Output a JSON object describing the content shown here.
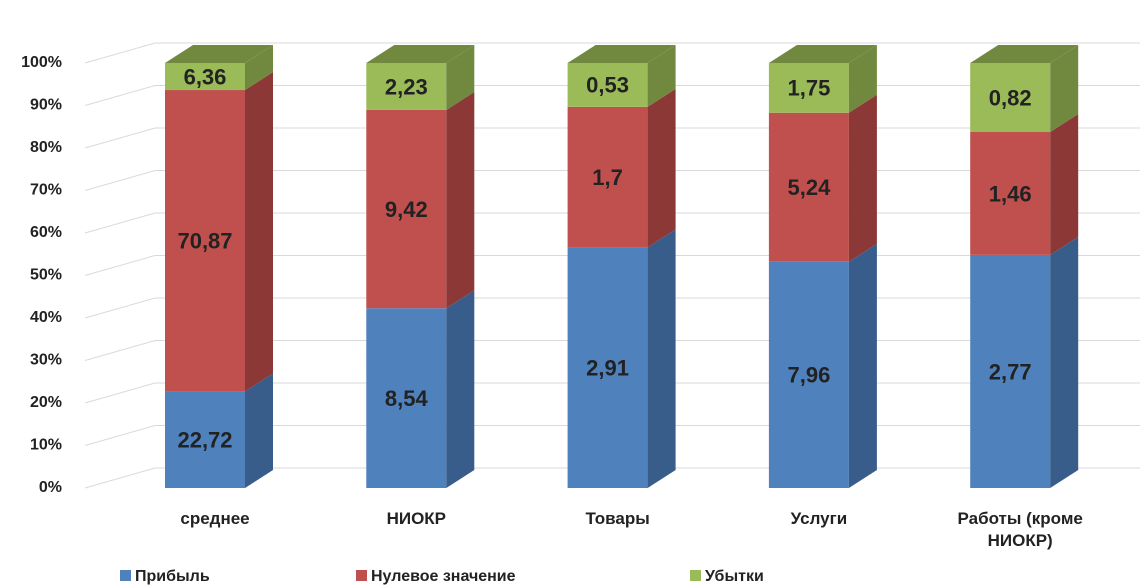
{
  "chart_data": {
    "type": "bar",
    "stacked": "percent",
    "categories": [
      "среднее",
      "НИОКР",
      "Товары",
      "Услуги",
      "Работы (кроме НИОКР)"
    ],
    "series": [
      {
        "name": "Прибыль",
        "color": "#4f81bd",
        "side_color": "#385d8a",
        "values": [
          22.72,
          8.54,
          2.91,
          7.96,
          2.77
        ],
        "value_labels": [
          "22,72",
          "8,54",
          "2,91",
          "7,96",
          "2,77"
        ]
      },
      {
        "name": "Нулевое значение",
        "color": "#c0504d",
        "side_color": "#8c3836",
        "values": [
          70.87,
          9.42,
          1.7,
          5.24,
          1.46
        ],
        "value_labels": [
          "70,87",
          "9,42",
          "1,7",
          "5,24",
          "1,46"
        ]
      },
      {
        "name": "Убытки",
        "color": "#9bbb59",
        "side_color": "#71893f",
        "values": [
          6.36,
          2.23,
          0.53,
          1.75,
          0.82
        ],
        "value_labels": [
          "6,36",
          "2,23",
          "0,53",
          "1,75",
          "0,82"
        ]
      }
    ],
    "ylim": [
      0,
      100
    ],
    "yticks": [
      {
        "value": 0,
        "label": "0%"
      },
      {
        "value": 10,
        "label": "10%"
      },
      {
        "value": 20,
        "label": "20%"
      },
      {
        "value": 30,
        "label": "30%"
      },
      {
        "value": 40,
        "label": "40%"
      },
      {
        "value": 50,
        "label": "50%"
      },
      {
        "value": 60,
        "label": "60%"
      },
      {
        "value": 70,
        "label": "70%"
      },
      {
        "value": 80,
        "label": "80%"
      },
      {
        "value": 90,
        "label": "90%"
      },
      {
        "value": 100,
        "label": "100%"
      }
    ],
    "grid": true,
    "legend": "bottom"
  }
}
